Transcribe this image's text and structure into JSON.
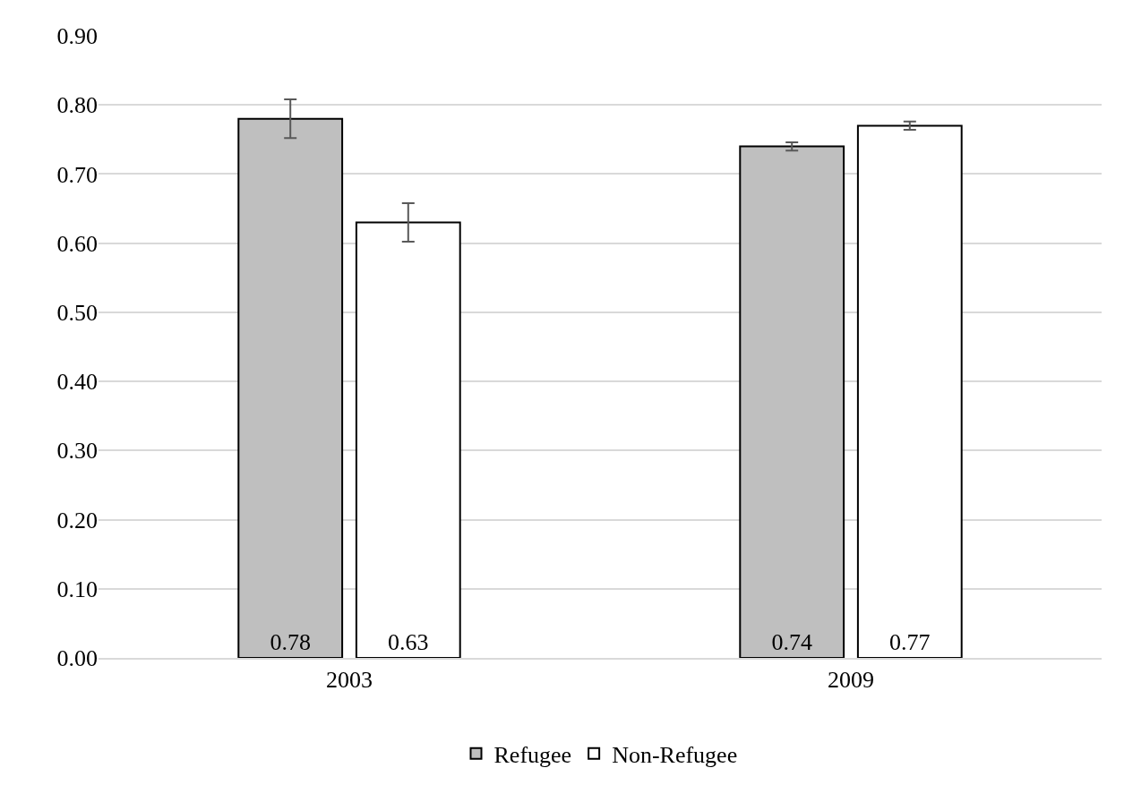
{
  "chart_data": {
    "type": "bar",
    "categories": [
      "2003",
      "2009"
    ],
    "series": [
      {
        "name": "Refugee",
        "color": "#bfbfbf",
        "values": [
          0.78,
          0.74
        ],
        "errors": [
          0.028,
          0.006
        ]
      },
      {
        "name": "Non-Refugee",
        "color": "#ffffff",
        "values": [
          0.63,
          0.77
        ],
        "errors": [
          0.028,
          0.006
        ]
      }
    ],
    "ylim": [
      0,
      0.9
    ],
    "yticks": [
      {
        "value": 0,
        "label": "0.00"
      },
      {
        "value": 0.1,
        "label": "0.10"
      },
      {
        "value": 0.2,
        "label": "0.20"
      },
      {
        "value": 0.3,
        "label": "0.30"
      },
      {
        "value": 0.4,
        "label": "0.40"
      },
      {
        "value": 0.5,
        "label": "0.50"
      },
      {
        "value": 0.6,
        "label": "0.60"
      },
      {
        "value": 0.7,
        "label": "0.70"
      },
      {
        "value": 0.8,
        "label": "0.80"
      },
      {
        "value": 0.9,
        "label": "0.90"
      }
    ],
    "grid": "y",
    "legend": "bottom",
    "data_labels": true
  }
}
